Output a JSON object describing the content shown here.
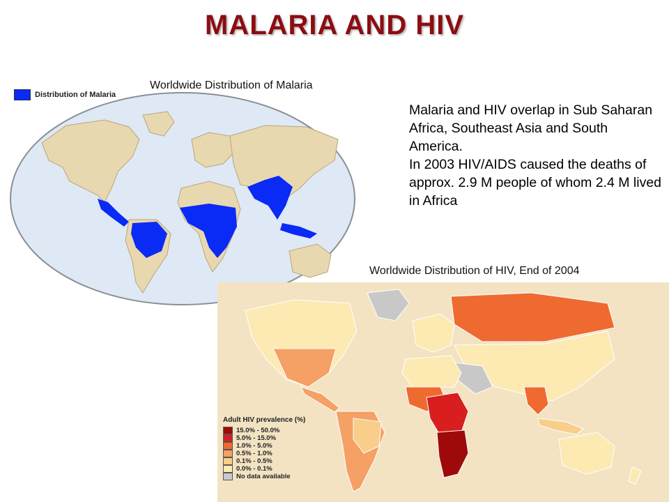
{
  "title": "MALARIA AND  HIV",
  "malaria_map": {
    "caption": "Worldwide Distribution of Malaria",
    "legend_label": "Distribution of Malaria",
    "legend_color": "#0a2af5"
  },
  "description": {
    "paragraph1": "Malaria and HIV overlap in Sub Saharan Africa, Southeast Asia and South America.",
    "paragraph2": "In 2003 HIV/AIDS caused the deaths of approx. 2.9 M people of whom 2.4 M lived in Africa"
  },
  "hiv_map": {
    "caption": "Worldwide Distribution of HIV, End of 2004",
    "legend_title": "Adult HIV prevalence (%)",
    "legend": [
      {
        "label": "15.0% - 50.0%",
        "color": "#9e0a0a"
      },
      {
        "label": "5.0% - 15.0%",
        "color": "#d81e1e"
      },
      {
        "label": "1.0% -   5.0%",
        "color": "#ef6a30"
      },
      {
        "label": "0.5% -   1.0%",
        "color": "#f5a064"
      },
      {
        "label": "0.1% -   0.5%",
        "color": "#f9cd8a"
      },
      {
        "label": "0.0% -   0.1%",
        "color": "#fde9b2"
      },
      {
        "label": "No data available",
        "color": "#c8c8c8"
      }
    ]
  },
  "colors": {
    "title": "#8b0d12",
    "ocean_malaria": "#dfe9f5",
    "land_malaria": "#e8d8b0",
    "hiv_background": "#f3e3c3"
  }
}
